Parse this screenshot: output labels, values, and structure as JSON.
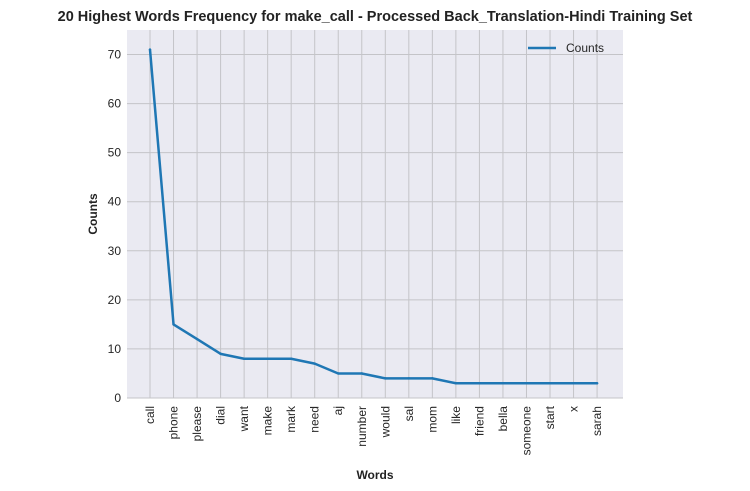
{
  "chart_data": {
    "type": "line",
    "title": "20 Highest Words Frequency for make_call - Processed Back_Translation-Hindi Training Set",
    "xlabel": "Words",
    "ylabel": "Counts",
    "categories": [
      "call",
      "phone",
      "please",
      "dial",
      "want",
      "make",
      "mark",
      "need",
      "aj",
      "number",
      "would",
      "sal",
      "mom",
      "like",
      "friend",
      "bella",
      "someone",
      "start",
      "x",
      "sarah"
    ],
    "series": [
      {
        "name": "Counts",
        "values": [
          71,
          15,
          12,
          9,
          8,
          8,
          8,
          7,
          5,
          5,
          4,
          4,
          4,
          3,
          3,
          3,
          3,
          3,
          3,
          3
        ]
      }
    ],
    "ylim": [
      0,
      75
    ],
    "yticks": [
      0,
      10,
      20,
      30,
      40,
      50,
      60,
      70
    ],
    "grid": true,
    "legend_position": "top-right",
    "colors": {
      "line": "#1f77b4",
      "plot_background": "#eaeaf2",
      "grid": "#c4c4c8"
    }
  }
}
